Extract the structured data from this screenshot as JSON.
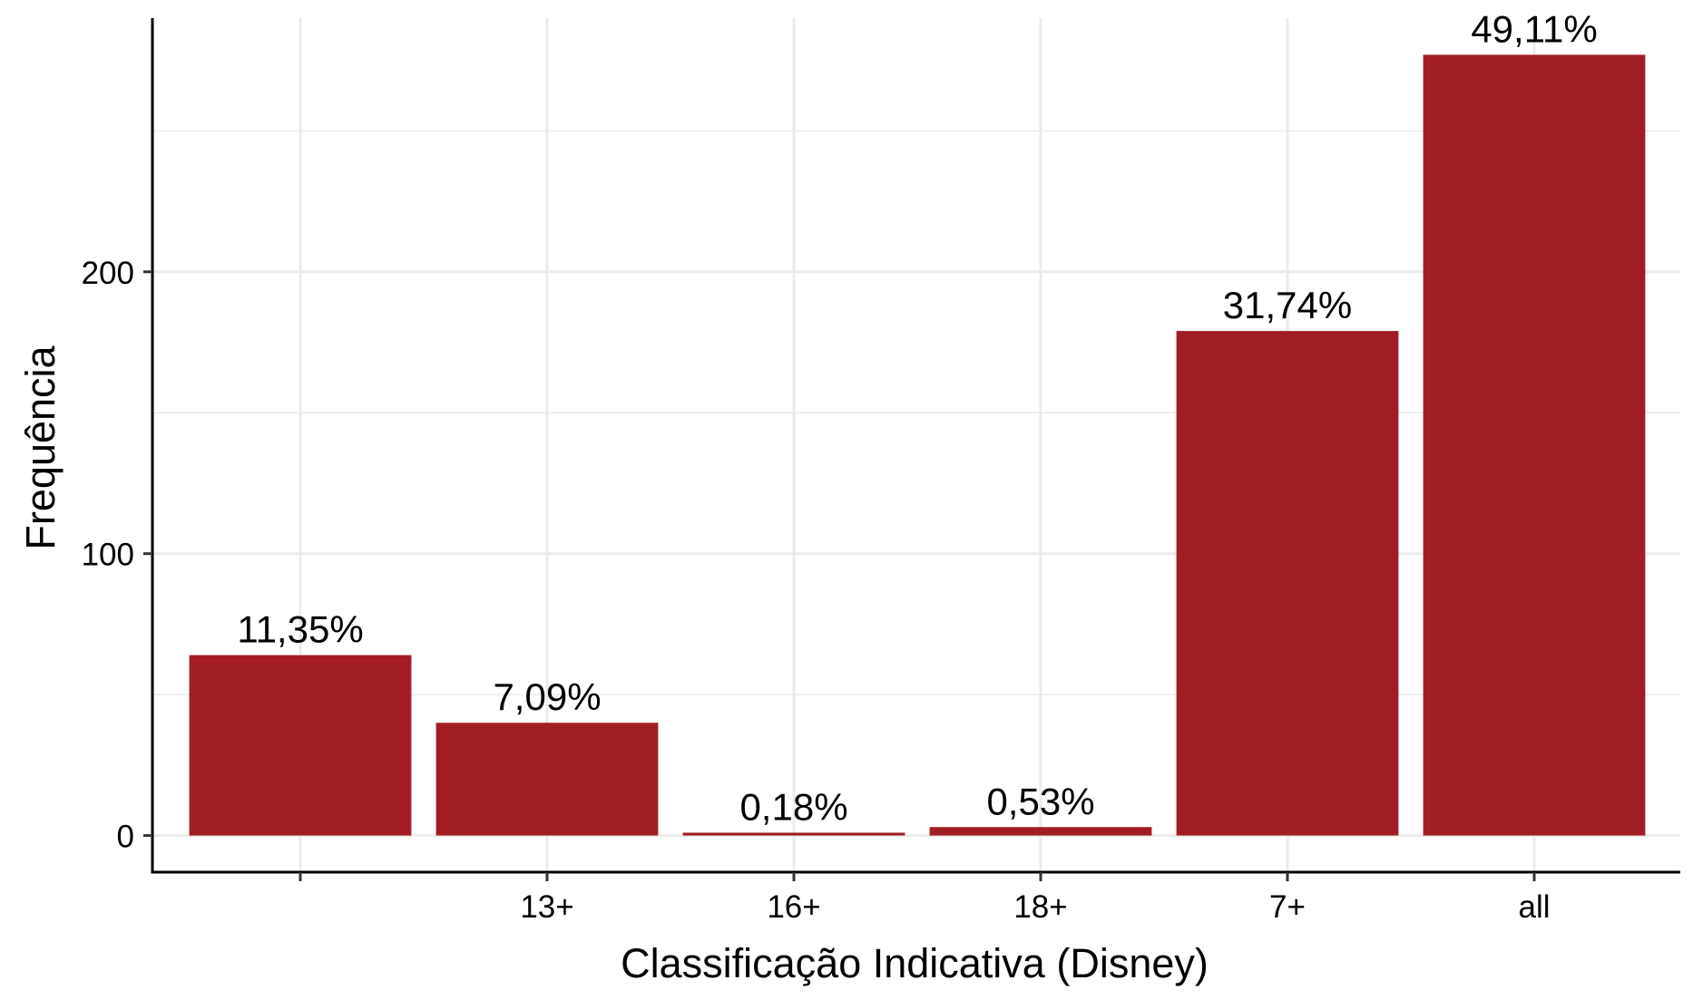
{
  "chart_data": {
    "type": "bar",
    "categories": [
      "",
      "13+",
      "16+",
      "18+",
      "7+",
      "all"
    ],
    "values": [
      64,
      40,
      1,
      3,
      179,
      277
    ],
    "labels": [
      "11,35%",
      "7,09%",
      "0,18%",
      "0,53%",
      "31,74%",
      "49,11%"
    ],
    "xlabel": "Classificação Indicativa (Disney)",
    "ylabel": "Frequência",
    "yticks": [
      0,
      100,
      200
    ],
    "ylim": [
      -13,
      290
    ],
    "grid": true,
    "bar_color": "#A11D23",
    "grid_color": "#EBEBEB"
  }
}
